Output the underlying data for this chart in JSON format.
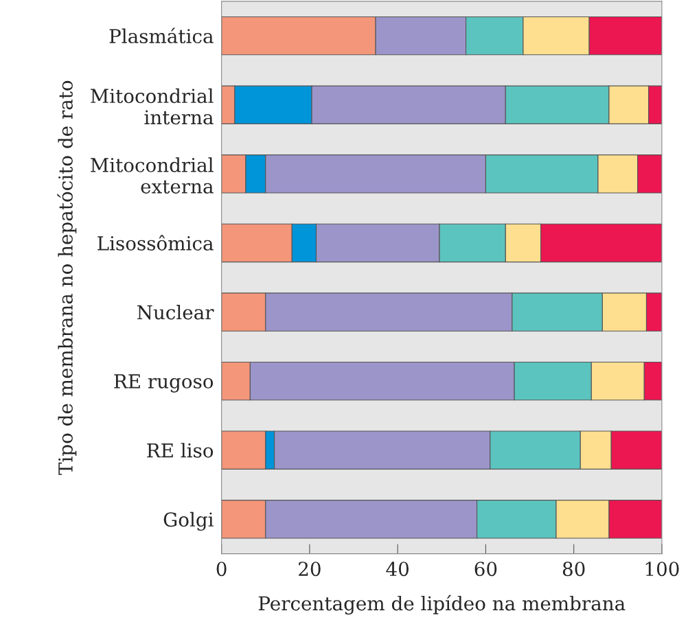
{
  "chart_data": {
    "type": "bar",
    "orientation": "horizontal",
    "stacked": true,
    "xlabel": "Percentagem de lipídeo na membrana",
    "ylabel": "Tipo de membrana no hepatócito de rato",
    "categories": [
      "Plasmática",
      "Mitocondrial\ninterna",
      "Mitocondrial\nexterna",
      "Lisossômica",
      "Nuclear",
      "RE rugoso",
      "RE liso",
      "Golgi"
    ],
    "series": [
      {
        "color": "#f4967a",
        "values": [
          35,
          3,
          5.5,
          16,
          10,
          6.5,
          10,
          10
        ]
      },
      {
        "color": "#0094d9",
        "values": [
          null,
          17.5,
          4.5,
          5.5,
          null,
          null,
          2,
          null
        ]
      },
      {
        "color": "#9c95c9",
        "values": [
          20.5,
          44,
          50,
          28,
          56,
          60,
          49,
          48
        ]
      },
      {
        "color": "#5cc4bf",
        "values": [
          13,
          23.5,
          25.5,
          15,
          20.5,
          17.5,
          20.5,
          18
        ]
      },
      {
        "color": "#fddf8f",
        "values": [
          15,
          9,
          9,
          8,
          10,
          12,
          7,
          12
        ]
      },
      {
        "color": "#ec1651",
        "values": [
          16.5,
          3,
          5.5,
          27.5,
          3.5,
          4,
          11.5,
          12
        ]
      }
    ],
    "xlim": [
      0,
      100
    ],
    "xticks": [
      0,
      20,
      40,
      60,
      80,
      100
    ],
    "grid": false,
    "legend": false
  }
}
